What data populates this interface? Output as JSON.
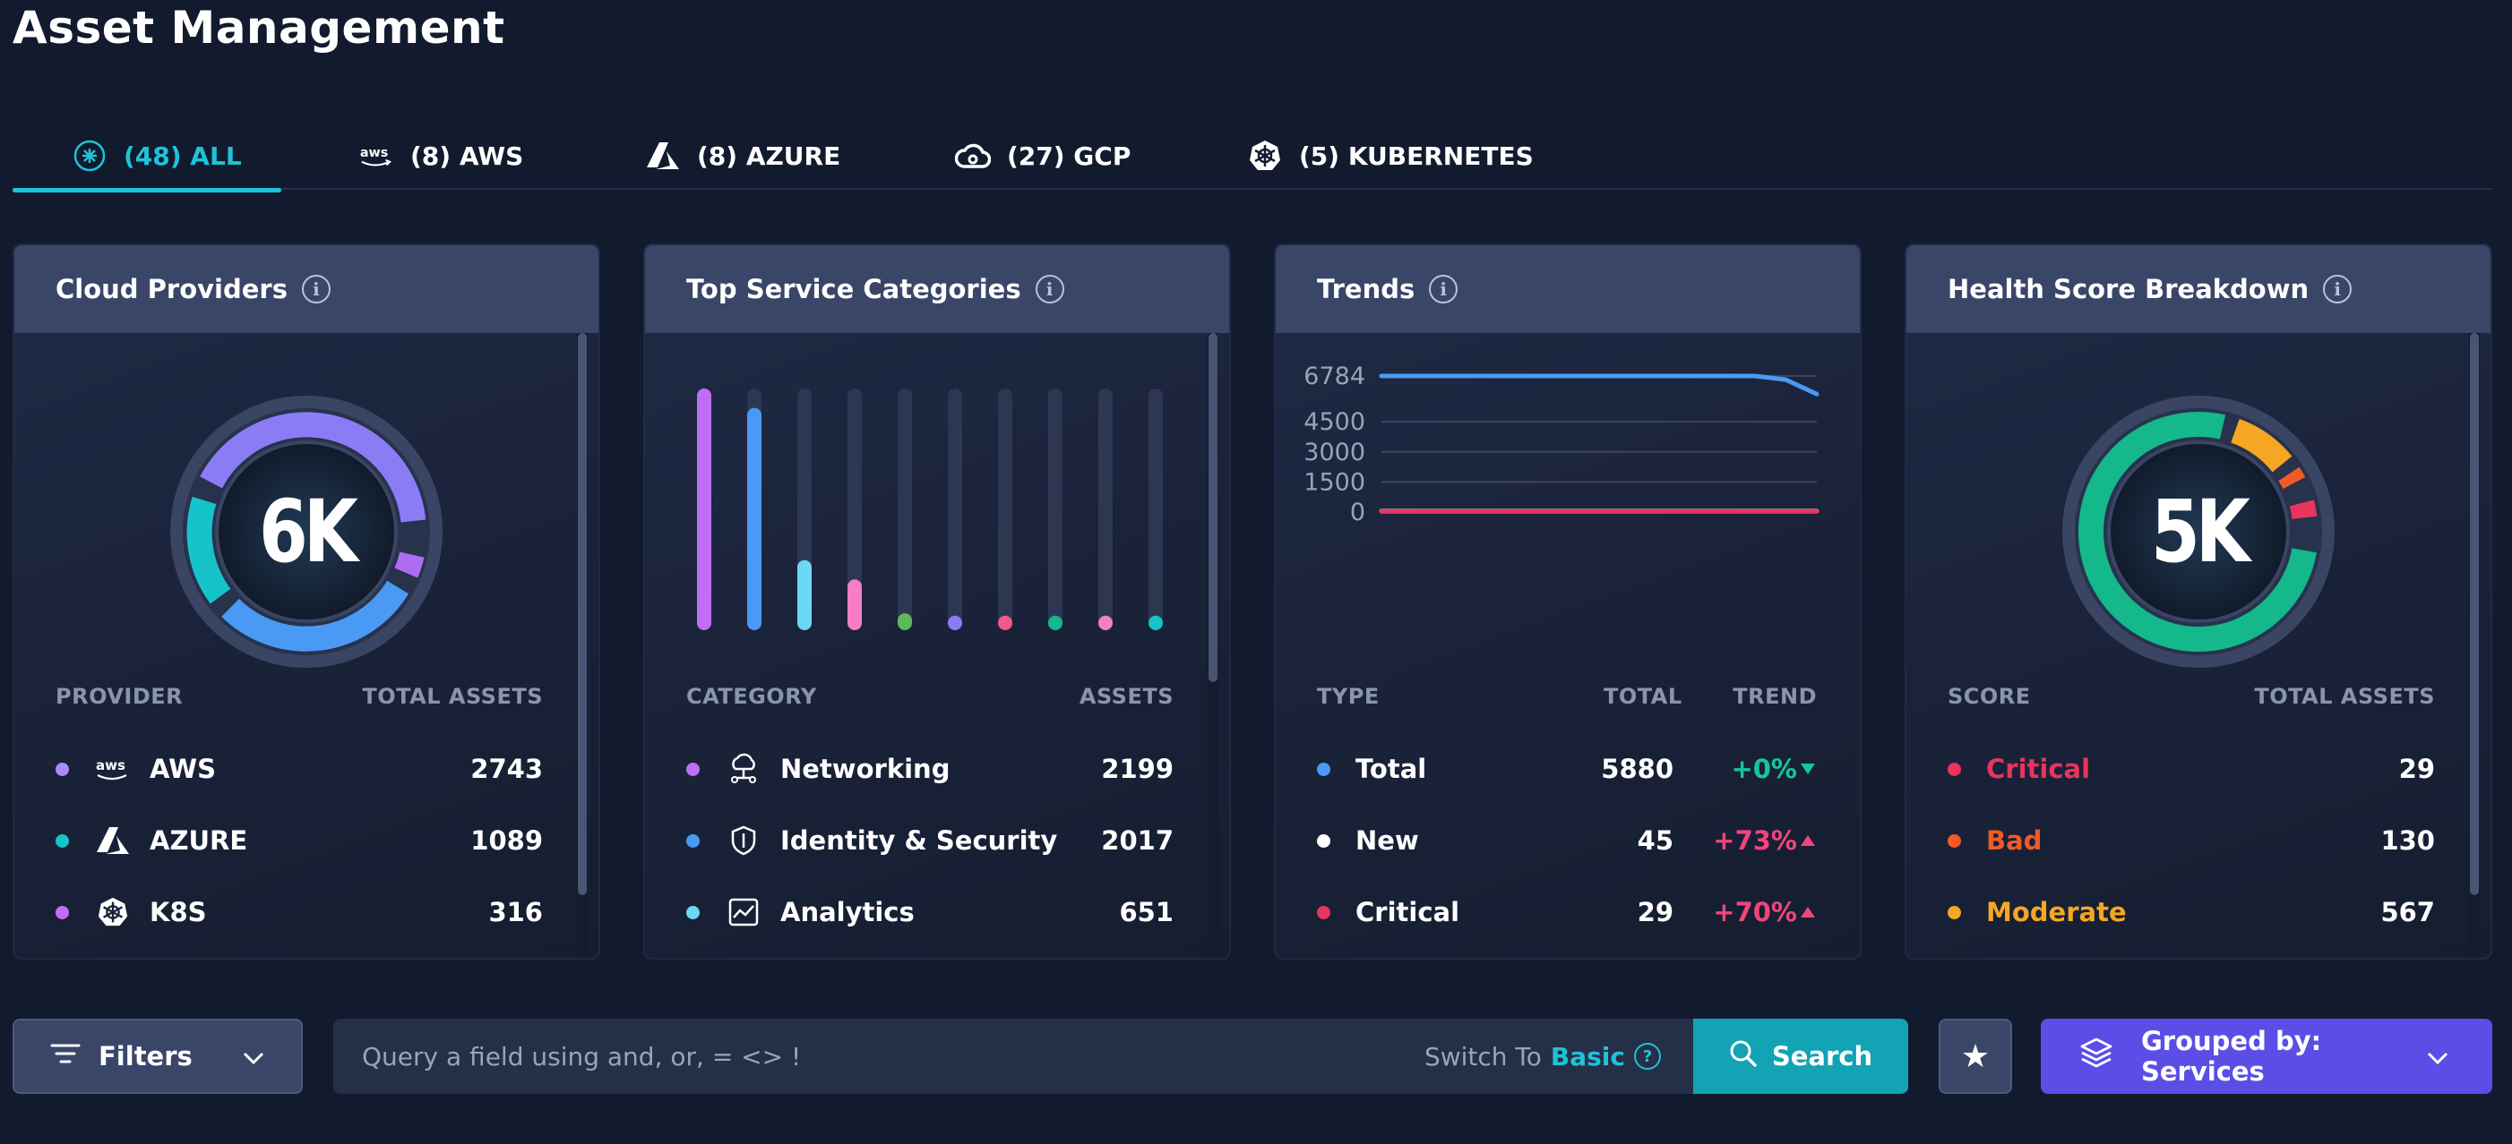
{
  "page": {
    "title": "Asset Management"
  },
  "tabs": [
    {
      "label": "(48) ALL",
      "icon": "all-icon",
      "active": true
    },
    {
      "label": "(8) AWS",
      "icon": "aws-icon"
    },
    {
      "label": "(8) AZURE",
      "icon": "azure-icon"
    },
    {
      "label": "(27) GCP",
      "icon": "gcp-icon"
    },
    {
      "label": "(5) KUBERNETES",
      "icon": "kubernetes-icon"
    }
  ],
  "cloud_providers": {
    "title": "Cloud Providers",
    "center": "6K",
    "col_provider": "PROVIDER",
    "col_total": "TOTAL ASSETS",
    "rows": [
      {
        "label": "AWS",
        "value": "2743",
        "color": "#a78bfa",
        "icon": "aws-icon"
      },
      {
        "label": "AZURE",
        "value": "1089",
        "color": "#16c3c9",
        "icon": "azure-icon"
      },
      {
        "label": "K8S",
        "value": "316",
        "color": "#c06ef5",
        "icon": "kubernetes-icon"
      }
    ],
    "colors": {
      "aws": "#8b7cf6",
      "azure": "#16c3c9",
      "blue": "#4a9af5",
      "k8s": "#b06cf0"
    }
  },
  "top_services": {
    "title": "Top Service Categories",
    "col_category": "CATEGORY",
    "col_assets": "ASSETS",
    "rows": [
      {
        "label": "Networking",
        "value": "2199",
        "color": "#c06ef5",
        "icon": "network-icon"
      },
      {
        "label": "Identity & Security",
        "value": "2017",
        "color": "#4a9af5",
        "icon": "shield-icon"
      },
      {
        "label": "Analytics",
        "value": "651",
        "color": "#6ad8f5",
        "icon": "chart-icon"
      }
    ],
    "bar_fill": [
      1.0,
      0.92,
      0.29,
      0.21,
      0.07,
      0.06,
      0.06,
      0.06,
      0.06,
      0.06
    ],
    "bar_colors": [
      "#c06ef5",
      "#4a9af5",
      "#6ad8f5",
      "#f57ec5",
      "#5cb85c",
      "#8b7cf6",
      "#f05a8a",
      "#14b88a",
      "#f57ec5",
      "#16c3c9"
    ]
  },
  "trends": {
    "title": "Trends",
    "col_type": "TYPE",
    "col_total": "TOTAL",
    "col_trend": "TREND",
    "rows": [
      {
        "label": "Total",
        "value": "5880",
        "trend": "+0%",
        "trend_color": "#14c79a",
        "dir": "down",
        "color": "#4a9af5"
      },
      {
        "label": "New",
        "value": "45",
        "trend": "+73%",
        "trend_color": "#f0457a",
        "dir": "up",
        "color": "#ffffff"
      },
      {
        "label": "Critical",
        "value": "29",
        "trend": "+70%",
        "trend_color": "#f0457a",
        "dir": "up",
        "color": "#e8345e"
      }
    ]
  },
  "chart_data": {
    "type": "line",
    "title": "",
    "xlabel": "",
    "ylabel": "",
    "yticks": [
      "6784",
      "4500",
      "3000",
      "1500",
      "0"
    ],
    "ylim": [
      0,
      6784
    ],
    "series": [
      {
        "values": [
          6784,
          6784,
          6784,
          6784,
          6784,
          6784,
          6784,
          6784,
          6784,
          6784,
          6784,
          6784,
          6784,
          6600,
          5880
        ],
        "color": "#4a9af5"
      },
      {
        "values": [
          45,
          45,
          45,
          45,
          45,
          45,
          45,
          45,
          45,
          45,
          45,
          45,
          45,
          45,
          45
        ],
        "color": "#ffffff"
      },
      {
        "values": [
          29,
          29,
          29,
          29,
          29,
          29,
          29,
          29,
          29,
          29,
          29,
          29,
          29,
          29,
          29
        ],
        "color": "#e8345e"
      }
    ]
  },
  "health": {
    "title": "Health Score Breakdown",
    "center": "5K",
    "col_score": "SCORE",
    "col_total": "TOTAL ASSETS",
    "rows": [
      {
        "label": "Critical",
        "value": "29",
        "color": "#e8345e"
      },
      {
        "label": "Bad",
        "value": "130",
        "color": "#f05a28"
      },
      {
        "label": "Moderate",
        "value": "567",
        "color": "#f5a623"
      }
    ],
    "colors": {
      "good": "#14b88a",
      "moderate": "#f5a623",
      "bad": "#f05a28",
      "critical": "#e8345e"
    }
  },
  "toolbar": {
    "filters_label": "Filters",
    "search_placeholder": "Query a field using and, or, = <> !",
    "switch_to": "Switch To",
    "switch_basic": "Basic",
    "help": "?",
    "search_label": "Search",
    "star": "★",
    "grouped_label": "Grouped by: Services"
  },
  "info_glyph": "i"
}
